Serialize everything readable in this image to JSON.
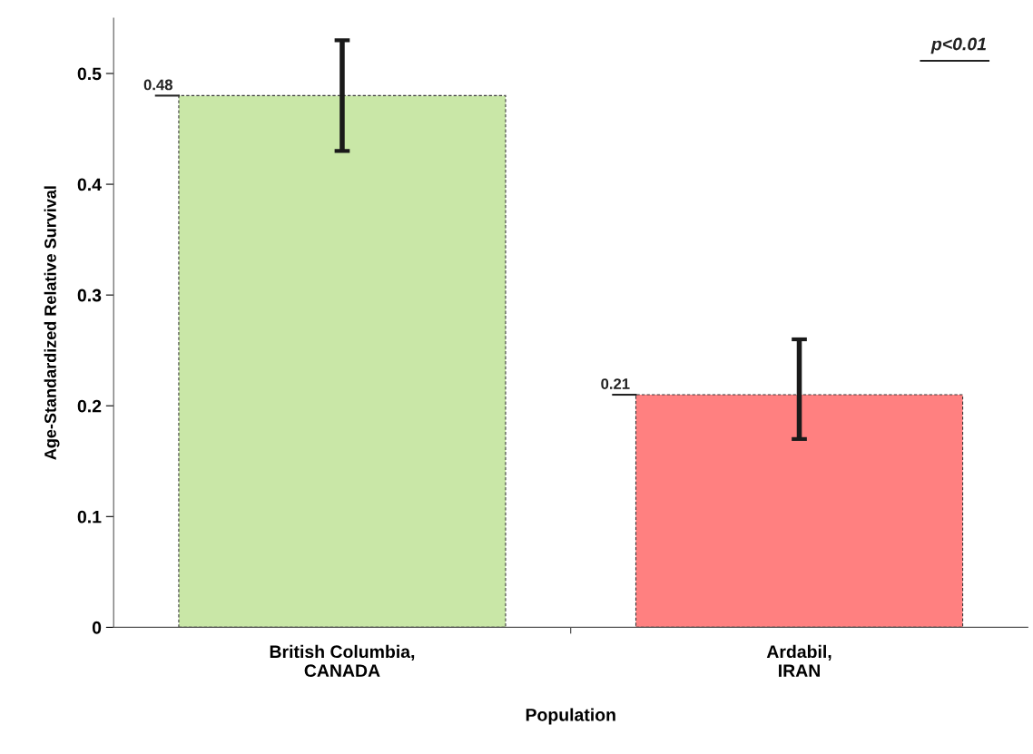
{
  "chart_data": {
    "type": "bar",
    "xlabel": "Population",
    "ylabel": "Age-Standardized Relative Survival",
    "categories": [
      "British Columbia,\nCANADA",
      "Ardabil,\nIRAN"
    ],
    "values": [
      0.48,
      0.21
    ],
    "colors": [
      "#c9e7a7",
      "#ff8080"
    ],
    "errors": [
      [
        0.43,
        0.53
      ],
      [
        0.17,
        0.26
      ]
    ],
    "data_labels": true,
    "ylim": [
      0,
      0.55
    ],
    "yticks": [
      0,
      0.1,
      0.2,
      0.3,
      0.4,
      0.5
    ],
    "grid": false,
    "legend": false,
    "annotations": [
      "p<0.01"
    ]
  }
}
